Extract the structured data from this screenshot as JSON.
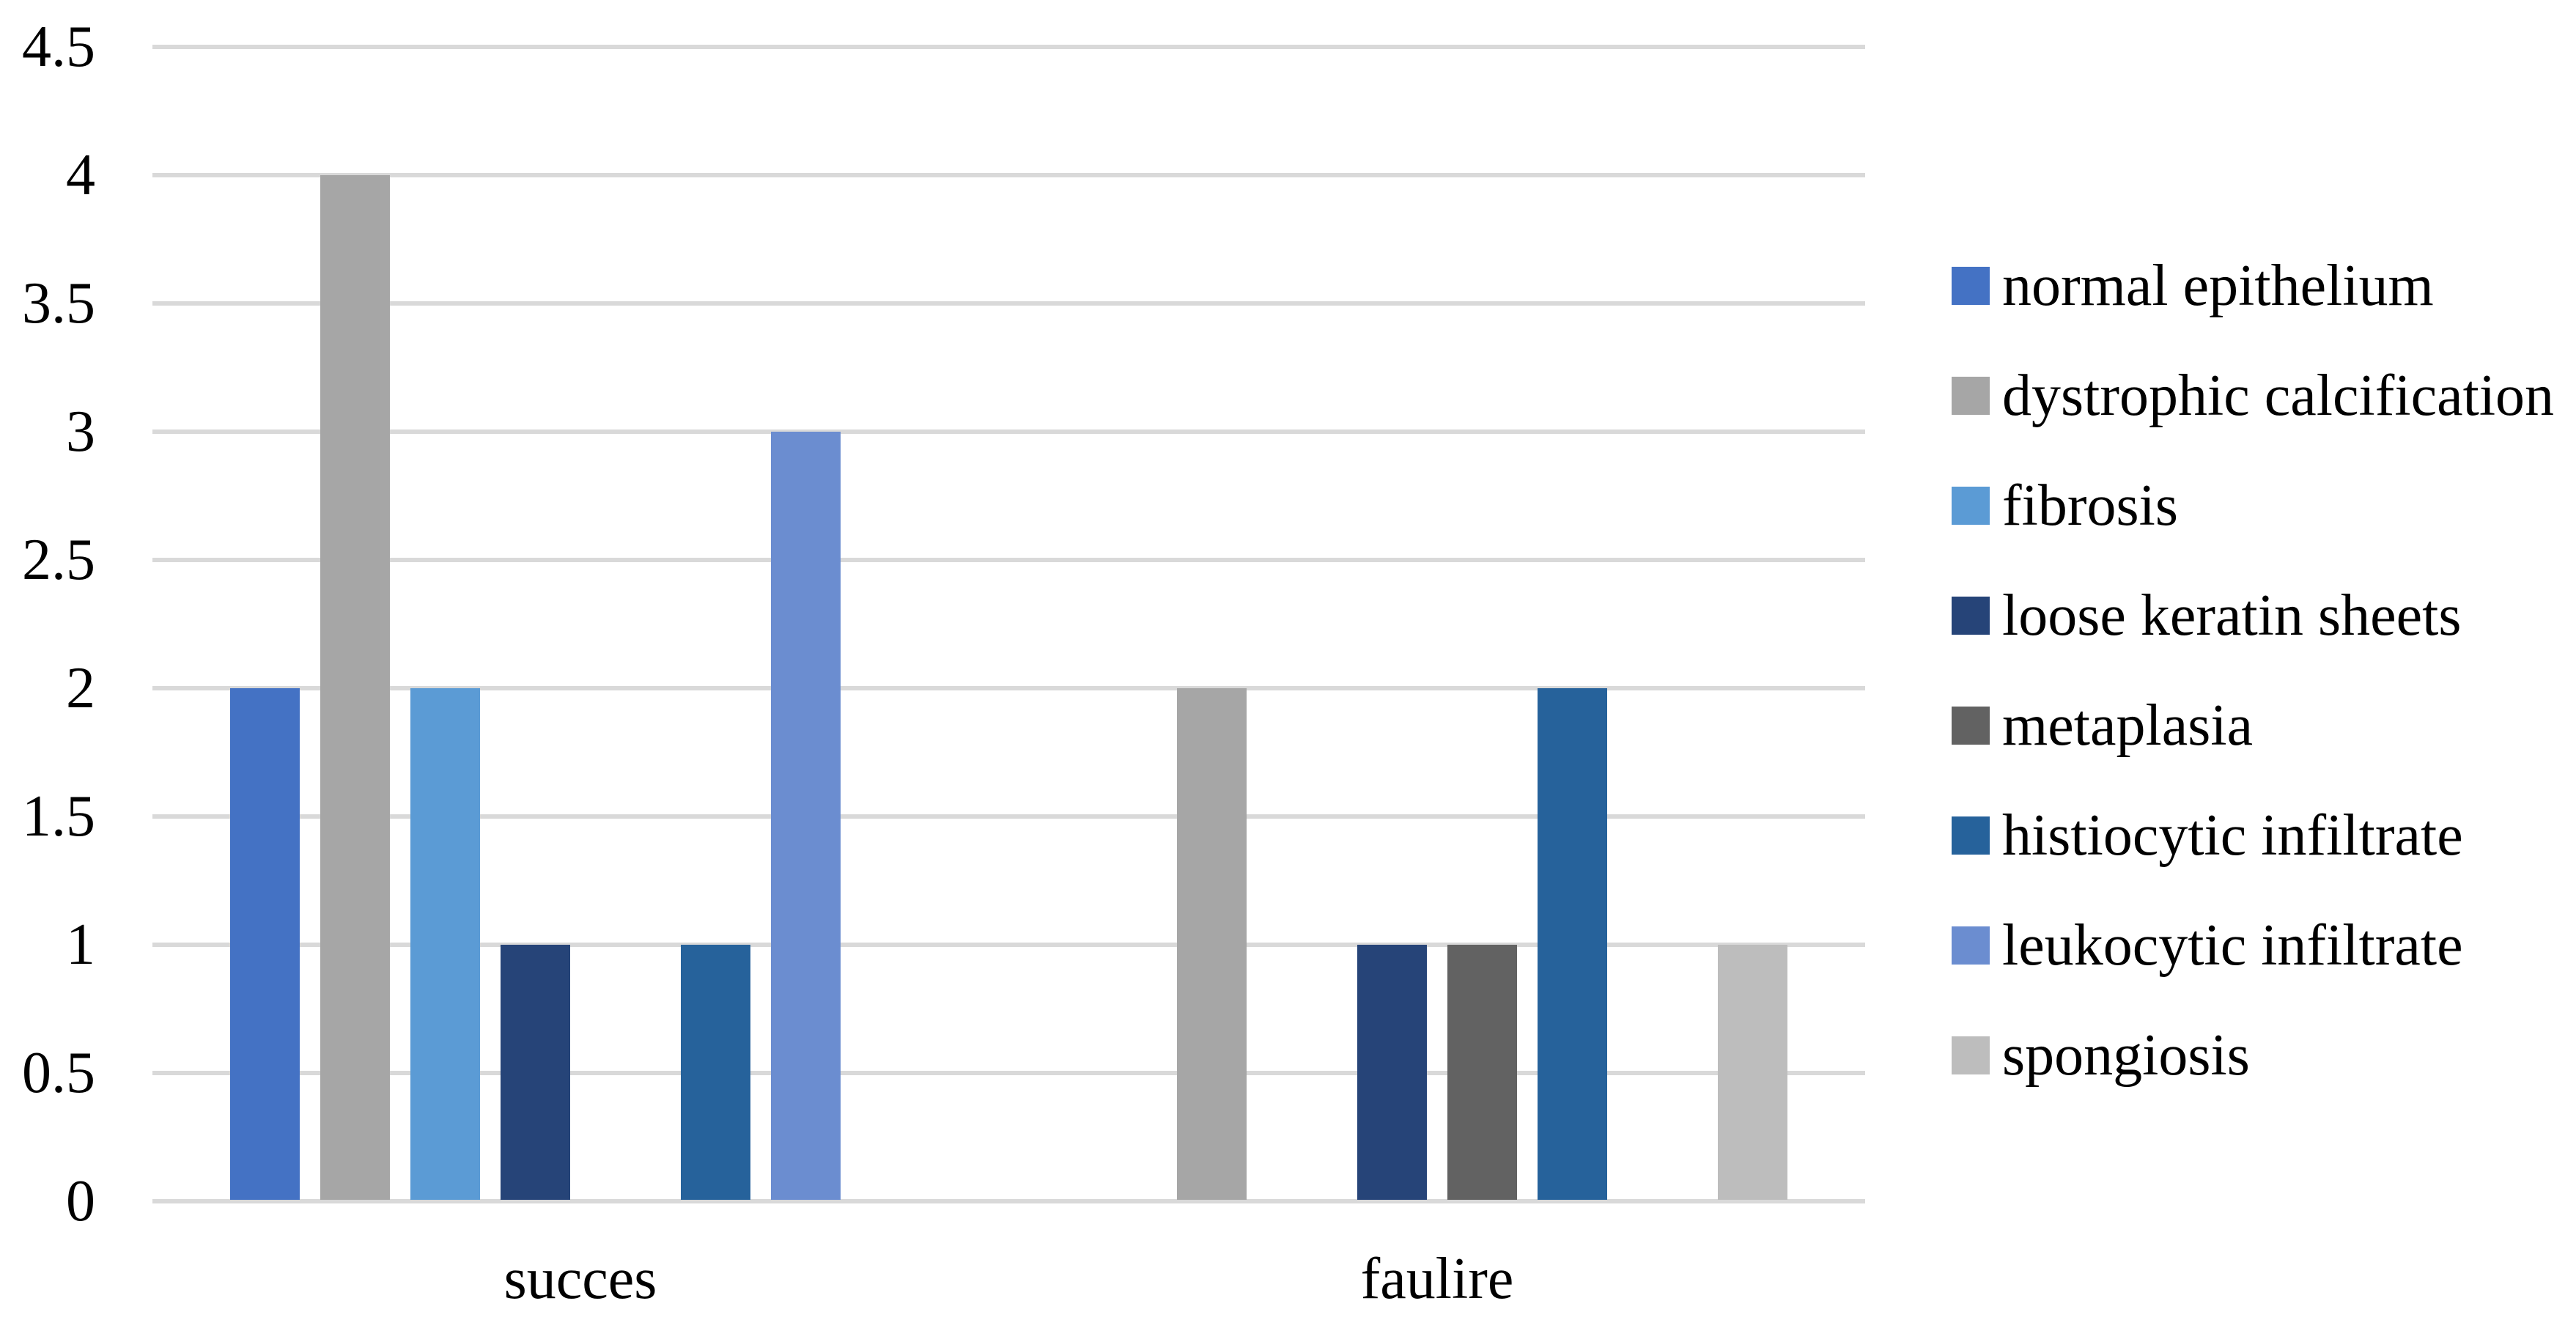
{
  "chart_data": {
    "type": "bar",
    "categories": [
      "succes",
      "faulire"
    ],
    "series": [
      {
        "name": "normal epithelium",
        "color": "#4472C4",
        "values": [
          2,
          0
        ]
      },
      {
        "name": "dystrophic calcification",
        "color": "#A6A6A6",
        "values": [
          4,
          2
        ]
      },
      {
        "name": "fibrosis",
        "color": "#5B9BD5",
        "values": [
          2,
          0
        ]
      },
      {
        "name": "loose keratin sheets",
        "color": "#264478",
        "values": [
          1,
          1
        ]
      },
      {
        "name": "metaplasia",
        "color": "#626262",
        "values": [
          0,
          1
        ]
      },
      {
        "name": "histiocytic infiltrate",
        "color": "#26629B",
        "values": [
          1,
          2
        ]
      },
      {
        "name": "leukocytic infiltrate",
        "color": "#6B8DD0",
        "values": [
          3,
          0
        ]
      },
      {
        "name": "spongiosis",
        "color": "#BDBDBD",
        "values": [
          0,
          1
        ]
      }
    ],
    "yticks": [
      "4.5",
      "4",
      "3.5",
      "3",
      "2.5",
      "2",
      "1.5",
      "1",
      "0.5",
      "0"
    ],
    "ylim": [
      0,
      4.5
    ],
    "ytick_step": 0.5,
    "grid": true,
    "legend_position": "right",
    "gridline_color": "#D9D9D9",
    "background_color": "#FFFFFF",
    "text_color": "#000000"
  }
}
